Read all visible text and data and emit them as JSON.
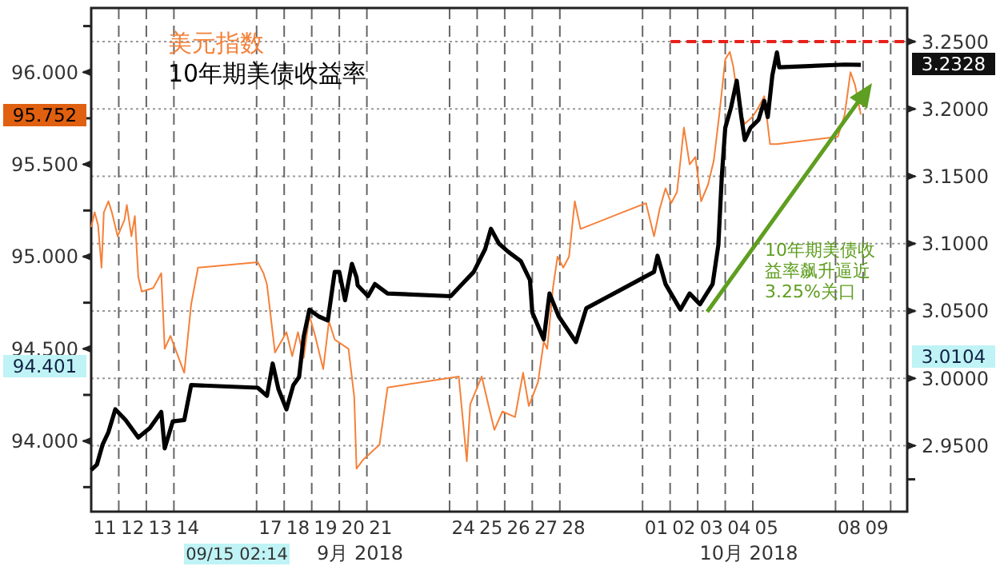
{
  "chart_data": {
    "type": "line",
    "legend": "top left",
    "grid": true,
    "line_style": "solid",
    "xlim": [
      "2018-09-11T00:00",
      "2018-10-10T14:24"
    ],
    "xticks": [
      {
        "value": "2018-09-11T12:00",
        "label": "11"
      },
      {
        "value": "2018-09-12T12:00",
        "label": "12"
      },
      {
        "value": "2018-09-13T12:00",
        "label": "13"
      },
      {
        "value": "2018-09-14T12:00",
        "label": "14"
      },
      {
        "value": "2018-09-17T12:00",
        "label": "17"
      },
      {
        "value": "2018-09-18T12:00",
        "label": "18"
      },
      {
        "value": "2018-09-19T12:00",
        "label": "19"
      },
      {
        "value": "2018-09-20T12:00",
        "label": "20"
      },
      {
        "value": "2018-09-21T12:00",
        "label": "21"
      },
      {
        "value": "2018-09-24T12:00",
        "label": "24"
      },
      {
        "value": "2018-09-25T12:00",
        "label": "25"
      },
      {
        "value": "2018-09-26T12:00",
        "label": "26"
      },
      {
        "value": "2018-09-27T12:00",
        "label": "27"
      },
      {
        "value": "2018-09-28T12:00",
        "label": "28"
      },
      {
        "value": "2018-10-01T12:00",
        "label": "01"
      },
      {
        "value": "2018-10-02T12:00",
        "label": "02"
      },
      {
        "value": "2018-10-03T12:00",
        "label": "03"
      },
      {
        "value": "2018-10-04T12:00",
        "label": "04"
      },
      {
        "value": "2018-10-05T12:00",
        "label": "05"
      },
      {
        "value": "2018-10-08T12:00",
        "label": "08"
      },
      {
        "value": "2018-10-09T12:00",
        "label": "09"
      },
      {
        "value": "2018-09-12T00:00",
        "label": null
      },
      {
        "value": "2018-09-13T00:00",
        "label": null
      },
      {
        "value": "2018-09-14T00:00",
        "label": null
      },
      {
        "value": "2018-09-17T00:00",
        "label": null
      },
      {
        "value": "2018-09-18T00:00",
        "label": null
      },
      {
        "value": "2018-09-19T00:00",
        "label": null
      },
      {
        "value": "2018-09-20T00:00",
        "label": null
      },
      {
        "value": "2018-09-21T00:00",
        "label": null
      },
      {
        "value": "2018-09-24T00:00",
        "label": null
      },
      {
        "value": "2018-09-25T00:00",
        "label": null
      },
      {
        "value": "2018-09-26T00:00",
        "label": null
      },
      {
        "value": "2018-09-27T00:00",
        "label": null
      },
      {
        "value": "2018-09-28T00:00",
        "label": null
      },
      {
        "value": "2018-10-01T00:00",
        "label": null
      },
      {
        "value": "2018-10-02T00:00",
        "label": null
      },
      {
        "value": "2018-10-03T00:00",
        "label": null
      },
      {
        "value": "2018-10-04T00:00",
        "label": null
      },
      {
        "value": "2018-10-05T00:00",
        "label": null
      },
      {
        "value": "2018-10-08T00:00",
        "label": null
      },
      {
        "value": "2018-10-09T00:00",
        "label": null
      },
      {
        "value": "2018-10-10T00:00",
        "label": null
      }
    ],
    "ylim": [
      93.617,
      96.348
    ],
    "yticks": [
      {
        "value": 93.75,
        "label": null
      },
      {
        "value": 94,
        "label": "94.000"
      },
      {
        "value": 94.25,
        "label": null
      },
      {
        "value": 94.5,
        "label": "94.500"
      },
      {
        "value": 94.75,
        "label": null
      },
      {
        "value": 95,
        "label": "95.000"
      },
      {
        "value": 95.25,
        "label": null
      },
      {
        "value": 95.5,
        "label": "95.500"
      },
      {
        "value": 95.75,
        "label": null
      },
      {
        "value": 96,
        "label": "96.000"
      },
      {
        "value": 96.25,
        "label": null
      }
    ],
    "y2lim": [
      2.901,
      3.275
    ],
    "y2ticks": [
      {
        "value": 2.925,
        "label": null
      },
      {
        "value": 2.95,
        "label": "2.9500"
      },
      {
        "value": 3,
        "label": "3.0000"
      },
      {
        "value": 3.05,
        "label": "3.0500"
      },
      {
        "value": 3.1,
        "label": "3.1000"
      },
      {
        "value": 3.15,
        "label": "3.1500"
      },
      {
        "value": 3.2,
        "label": "3.2000"
      },
      {
        "value": 3.25,
        "label": "3.2500"
      }
    ],
    "ref_lines": [
      {
        "axis": "y2",
        "value": 3.25,
        "color": "#e8201a",
        "line_style": "dashed"
      }
    ],
    "annotations": [
      "95.752",
      "94.401",
      "3.2328",
      "3.0104",
      "09/15 02:14",
      "9月 2018",
      "10月 2018",
      "10年期美债收益率飙升逼近3.25%关口"
    ],
    "series": [
      {
        "name": "美元指数",
        "color": "#f5813a",
        "axis": "y",
        "x": [
          "2018-09-11T00:00",
          "2018-09-11T03:00",
          "2018-09-11T06:00",
          "2018-09-11T09:00",
          "2018-09-11T11:00",
          "2018-09-11T15:00",
          "2018-09-11T18:00",
          "2018-09-11T23:00",
          "2018-09-12T05:00",
          "2018-09-12T07:00",
          "2018-09-12T11:00",
          "2018-09-12T14:00",
          "2018-09-12T17:00",
          "2018-09-12T20:00",
          "2018-09-13T06:00",
          "2018-09-13T13:00",
          "2018-09-13T16:00",
          "2018-09-13T21:00",
          "2018-09-14T09:00",
          "2018-09-14T15:00",
          "2018-09-14T21:00",
          "2018-09-17T01:00",
          "2018-09-17T06:00",
          "2018-09-17T09:00",
          "2018-09-17T16:00",
          "2018-09-18T02:00",
          "2018-09-18T07:00",
          "2018-09-18T12:00",
          "2018-09-18T17:00",
          "2018-09-18T22:00",
          "2018-09-19T03:00",
          "2018-09-19T10:00",
          "2018-09-19T15:00",
          "2018-09-19T20:00",
          "2018-09-20T08:00",
          "2018-09-20T13:00",
          "2018-09-20T15:00",
          "2018-09-20T21:00",
          "2018-09-21T11:00",
          "2018-09-21T18:00",
          "2018-09-24T08:00",
          "2018-09-24T15:00",
          "2018-09-24T18:00",
          "2018-09-25T04:00",
          "2018-09-25T10:00",
          "2018-09-25T15:00",
          "2018-09-25T22:00",
          "2018-09-26T09:00",
          "2018-09-26T16:00",
          "2018-09-26T21:00",
          "2018-09-27T05:00",
          "2018-09-27T10:00",
          "2018-09-27T13:00",
          "2018-09-27T18:00",
          "2018-09-27T22:00",
          "2018-09-28T03:00",
          "2018-09-28T08:00",
          "2018-09-28T13:00",
          "2018-09-28T18:00",
          "2018-10-01T03:00",
          "2018-10-01T10:00",
          "2018-10-01T15:00",
          "2018-10-01T20:00",
          "2018-10-02T01:00",
          "2018-10-02T06:00",
          "2018-10-02T09:00",
          "2018-10-02T12:00",
          "2018-10-02T17:00",
          "2018-10-02T22:00",
          "2018-10-03T03:00",
          "2018-10-03T09:00",
          "2018-10-03T14:00",
          "2018-10-03T19:00",
          "2018-10-04T00:00",
          "2018-10-04T04:00",
          "2018-10-04T07:00",
          "2018-10-04T12:00",
          "2018-10-04T17:00",
          "2018-10-05T00:00",
          "2018-10-05T05:00",
          "2018-10-05T10:00",
          "2018-10-05T15:00",
          "2018-10-05T21:00",
          "2018-10-08T02:00",
          "2018-10-08T08:00",
          "2018-10-08T13:00",
          "2018-10-08T17:00",
          "2018-10-08T22:00"
        ],
        "values": [
          95.16,
          95.24,
          95.17,
          94.94,
          95.24,
          95.3,
          95.24,
          95.11,
          95.2,
          95.28,
          95.11,
          95.22,
          94.89,
          94.81,
          94.83,
          94.91,
          94.5,
          94.57,
          94.37,
          94.74,
          94.94,
          94.97,
          94.91,
          94.85,
          94.48,
          94.59,
          94.46,
          94.59,
          94.45,
          94.68,
          94.57,
          94.39,
          94.65,
          94.55,
          94.5,
          94.24,
          93.85,
          93.9,
          93.98,
          94.29,
          94.35,
          93.89,
          94.2,
          94.35,
          94.19,
          94.06,
          94.16,
          94.13,
          94.37,
          94.19,
          94.32,
          94.54,
          94.5,
          94.83,
          95.0,
          94.94,
          95.0,
          95.3,
          95.15,
          95.29,
          95.11,
          95.26,
          95.37,
          95.29,
          95.35,
          95.52,
          95.7,
          95.5,
          95.54,
          95.3,
          95.39,
          95.52,
          95.78,
          96.07,
          96.11,
          96.03,
          95.81,
          95.72,
          95.76,
          95.81,
          95.87,
          95.61,
          95.61,
          95.65,
          95.77,
          96.0,
          95.93,
          95.77
        ]
      },
      {
        "name": "10年期美债收益率",
        "color": "#000000",
        "axis": "y2",
        "x": [
          "2018-09-11T00:00",
          "2018-09-11T05:00",
          "2018-09-11T10:00",
          "2018-09-11T15:00",
          "2018-09-11T21:00",
          "2018-09-12T06:00",
          "2018-09-12T17:00",
          "2018-09-13T03:00",
          "2018-09-13T13:00",
          "2018-09-13T16:00",
          "2018-09-13T23:00",
          "2018-09-14T09:00",
          "2018-09-14T15:00",
          "2018-09-17T01:00",
          "2018-09-17T09:00",
          "2018-09-17T14:00",
          "2018-09-17T19:00",
          "2018-09-18T02:00",
          "2018-09-18T08:00",
          "2018-09-18T13:00",
          "2018-09-18T17:00",
          "2018-09-18T22:00",
          "2018-09-19T06:00",
          "2018-09-19T14:00",
          "2018-09-19T20:00",
          "2018-09-20T00:00",
          "2018-09-20T05:00",
          "2018-09-20T11:00",
          "2018-09-20T15:00",
          "2018-09-20T16:00",
          "2018-09-21T01:00",
          "2018-09-21T07:00",
          "2018-09-21T18:00",
          "2018-09-24T01:00",
          "2018-09-24T11:00",
          "2018-09-24T21:00",
          "2018-09-25T07:00",
          "2018-09-25T12:00",
          "2018-09-25T19:00",
          "2018-09-26T03:00",
          "2018-09-26T14:00",
          "2018-09-26T22:00",
          "2018-09-27T00:00",
          "2018-09-27T10:00",
          "2018-09-27T15:00",
          "2018-09-27T23:00",
          "2018-09-28T14:00",
          "2018-09-28T23:00",
          "2018-10-01T10:00",
          "2018-10-01T13:00",
          "2018-10-01T20:00",
          "2018-10-02T09:00",
          "2018-10-02T17:00",
          "2018-10-03T02:00",
          "2018-10-03T13:00",
          "2018-10-03T18:00",
          "2018-10-03T21:00",
          "2018-10-04T00:00",
          "2018-10-04T05:00",
          "2018-10-04T10:00",
          "2018-10-04T14:00",
          "2018-10-04T17:00",
          "2018-10-04T22:00",
          "2018-10-05T05:00",
          "2018-10-05T10:00",
          "2018-10-05T13:00",
          "2018-10-05T17:00",
          "2018-10-05T21:00",
          "2018-10-05T23:00",
          "2018-10-08T08:00",
          "2018-10-08T22:00"
        ],
        "values": [
          2.932,
          2.936,
          2.951,
          2.96,
          2.977,
          2.969,
          2.956,
          2.963,
          2.975,
          2.948,
          2.968,
          2.969,
          2.995,
          2.993,
          2.987,
          3.011,
          2.992,
          2.977,
          2.995,
          3.001,
          3.031,
          3.051,
          3.046,
          3.043,
          3.079,
          3.079,
          3.058,
          3.085,
          3.075,
          3.069,
          3.061,
          3.07,
          3.063,
          3.061,
          3.07,
          3.079,
          3.096,
          3.111,
          3.1,
          3.094,
          3.087,
          3.073,
          3.049,
          3.029,
          3.063,
          3.046,
          3.027,
          3.052,
          3.079,
          3.091,
          3.07,
          3.051,
          3.063,
          3.055,
          3.07,
          3.099,
          3.15,
          3.186,
          3.201,
          3.221,
          3.194,
          3.177,
          3.186,
          3.192,
          3.206,
          3.194,
          3.225,
          3.242,
          3.231,
          3.233,
          3.2328
        ]
      }
    ]
  }
}
